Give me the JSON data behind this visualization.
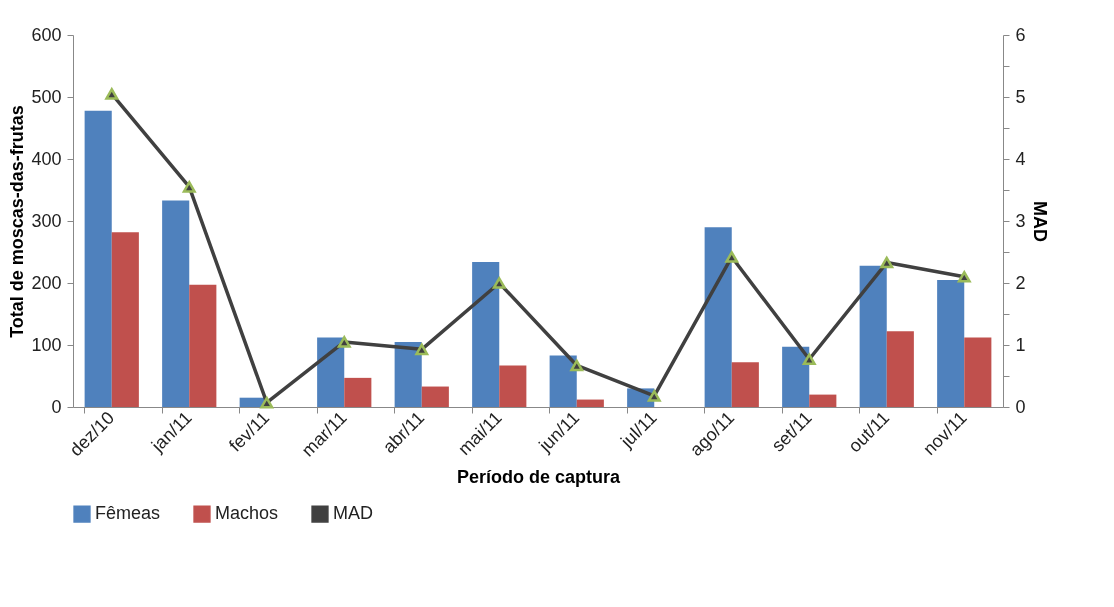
{
  "chart_data": {
    "type": "bar",
    "xlabel": "Período de captura",
    "ylabel": "Total de moscas-das-frutas",
    "y2label": "MAD",
    "categories": [
      "dez/10",
      "jan/11",
      "fev/11",
      "mar/11",
      "abr/11",
      "mai/11",
      "jun/11",
      "jul/11",
      "ago/11",
      "set/11",
      "out/11",
      "nov/11"
    ],
    "series": [
      {
        "name": "Fêmeas",
        "color": "#4f81bd",
        "values": [
          478,
          333,
          15,
          112,
          105,
          234,
          83,
          30,
          290,
          97,
          228,
          205
        ]
      },
      {
        "name": "Machos",
        "color": "#c0504d",
        "values": [
          282,
          197,
          0,
          47,
          33,
          67,
          12,
          0,
          72,
          20,
          122,
          112
        ]
      },
      {
        "name": "MAD",
        "type": "line",
        "axis": "y2",
        "color": "#404040",
        "marker": "triangle",
        "values": [
          5.05,
          3.55,
          0.07,
          1.05,
          0.93,
          2.0,
          0.67,
          0.18,
          2.42,
          0.77,
          2.33,
          2.1
        ]
      }
    ],
    "ylim": [
      0,
      600
    ],
    "yticks": [
      0,
      100,
      200,
      300,
      400,
      500,
      600
    ],
    "y2lim": [
      0,
      6
    ],
    "y2ticks": [
      0,
      {
        "value": 0.5,
        "label": null
      },
      1,
      {
        "value": 1.5,
        "label": null
      },
      2,
      {
        "value": 2.5,
        "label": null
      },
      3,
      {
        "value": 3.5,
        "label": null
      },
      4,
      {
        "value": 4.5,
        "label": null
      },
      5,
      {
        "value": 5.5,
        "label": null
      },
      6
    ],
    "grid": false,
    "legend": "bottom"
  }
}
